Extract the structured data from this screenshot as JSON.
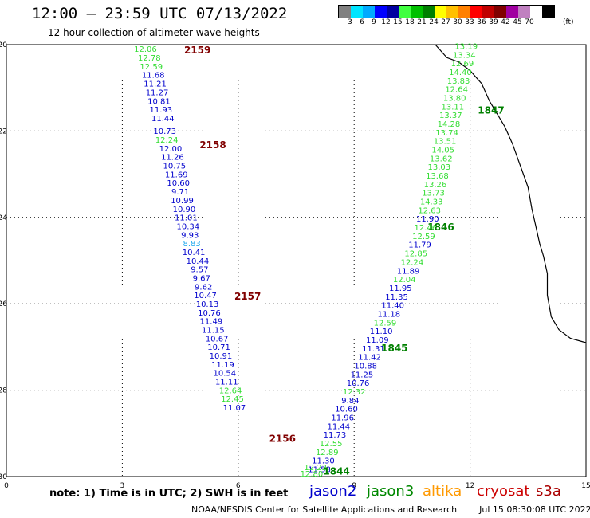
{
  "title": "12:00 – 23:59 UTC 07/13/2022",
  "subtitle": "12 hour collection of altimeter wave heights",
  "colorbar": {
    "colors": [
      "#808080",
      "#00e5ff",
      "#00aaff",
      "#0000ff",
      "#0000a0",
      "#40ff40",
      "#00c000",
      "#008000",
      "#ffff00",
      "#ffc000",
      "#ff8000",
      "#ff0000",
      "#c00000",
      "#800000",
      "#a000a0",
      "#c080c0",
      "#ffffff",
      "#000000"
    ],
    "ticks": [
      "3",
      "6",
      "9",
      "12",
      "15",
      "18",
      "21",
      "24",
      "27",
      "30",
      "33",
      "36",
      "39",
      "42",
      "45",
      "70"
    ],
    "unit": "(ft)"
  },
  "note": "note:  1) Time is in UTC;  2) SWH is in feet",
  "satellites": [
    {
      "name": "jason2",
      "color": "#0000cc"
    },
    {
      "name": "jason3",
      "color": "#008800"
    },
    {
      "name": "altika",
      "color": "#ff9900"
    },
    {
      "name": "cryosat",
      "color": "#cc0000"
    },
    {
      "name": "s3a",
      "color": "#aa0000"
    }
  ],
  "credit": "NOAA/NESDIS Center for Satellite Applications and Research",
  "timestamp": "Jul 15 08:30:08 UTC 2022",
  "chart_data": {
    "type": "scatter",
    "xlim": [
      0,
      15
    ],
    "ylim": [
      -30,
      -20
    ],
    "xticks": [
      "0",
      "3",
      "6",
      "9",
      "12",
      "15"
    ],
    "yticks": [
      "-20",
      "-22",
      "-24",
      "-26",
      "-28",
      "-30"
    ],
    "grid": true,
    "colors": {
      "blue": "#0000cc",
      "green": "#33dd33",
      "cyan": "#22aaee"
    },
    "passes": [
      {
        "name": "2159",
        "label_x": 4.6,
        "label_y": -20.2,
        "color": "#800000"
      },
      {
        "name": "2158",
        "label_x": 5.0,
        "label_y": -22.4,
        "color": "#800000"
      },
      {
        "name": "2157",
        "label_x": 5.9,
        "label_y": -25.9,
        "color": "#800000"
      },
      {
        "name": "2156",
        "label_x": 6.8,
        "label_y": -29.2,
        "color": "#800000"
      },
      {
        "name": "1847",
        "label_x": 12.2,
        "label_y": -21.6,
        "color": "#008000"
      },
      {
        "name": "1846",
        "label_x": 10.9,
        "label_y": -24.3,
        "color": "#008000"
      },
      {
        "name": "1845",
        "label_x": 9.7,
        "label_y": -27.1,
        "color": "#008000"
      },
      {
        "name": "1844",
        "label_x": 8.2,
        "label_y": -29.95,
        "color": "#008000"
      }
    ],
    "points": [
      {
        "x": 3.6,
        "y": -20.17,
        "v": "12.06",
        "c": "green"
      },
      {
        "x": 3.7,
        "y": -20.37,
        "v": "12.78",
        "c": "green"
      },
      {
        "x": 3.75,
        "y": -20.57,
        "v": "12.59",
        "c": "green"
      },
      {
        "x": 3.8,
        "y": -20.77,
        "v": "11.68",
        "c": "blue"
      },
      {
        "x": 3.85,
        "y": -20.97,
        "v": "11.21",
        "c": "blue"
      },
      {
        "x": 3.9,
        "y": -21.17,
        "v": "11.27",
        "c": "blue"
      },
      {
        "x": 3.95,
        "y": -21.37,
        "v": "10.81",
        "c": "blue"
      },
      {
        "x": 4.0,
        "y": -21.57,
        "v": "11.93",
        "c": "blue"
      },
      {
        "x": 4.05,
        "y": -21.77,
        "v": "11.44",
        "c": "blue"
      },
      {
        "x": 4.1,
        "y": -22.07,
        "v": "10.73",
        "c": "blue"
      },
      {
        "x": 4.15,
        "y": -22.27,
        "v": "12.24",
        "c": "green"
      },
      {
        "x": 4.25,
        "y": -22.47,
        "v": "12.00",
        "c": "blue"
      },
      {
        "x": 4.3,
        "y": -22.67,
        "v": "11.26",
        "c": "blue"
      },
      {
        "x": 4.35,
        "y": -22.87,
        "v": "10.75",
        "c": "blue"
      },
      {
        "x": 4.4,
        "y": -23.07,
        "v": "11.69",
        "c": "blue"
      },
      {
        "x": 4.45,
        "y": -23.27,
        "v": "10.60",
        "c": "blue"
      },
      {
        "x": 4.5,
        "y": -23.47,
        "v": "9.71",
        "c": "blue"
      },
      {
        "x": 4.55,
        "y": -23.67,
        "v": "10.99",
        "c": "blue"
      },
      {
        "x": 4.6,
        "y": -23.87,
        "v": "10.90",
        "c": "blue"
      },
      {
        "x": 4.65,
        "y": -24.07,
        "v": "11.01",
        "c": "blue"
      },
      {
        "x": 4.7,
        "y": -24.27,
        "v": "10.34",
        "c": "blue"
      },
      {
        "x": 4.75,
        "y": -24.47,
        "v": "9.93",
        "c": "blue"
      },
      {
        "x": 4.8,
        "y": -24.67,
        "v": "8.83",
        "c": "cyan"
      },
      {
        "x": 4.85,
        "y": -24.87,
        "v": "10.41",
        "c": "blue"
      },
      {
        "x": 4.95,
        "y": -25.07,
        "v": "10.44",
        "c": "blue"
      },
      {
        "x": 5.0,
        "y": -25.27,
        "v": "9.57",
        "c": "blue"
      },
      {
        "x": 5.05,
        "y": -25.47,
        "v": "9.67",
        "c": "blue"
      },
      {
        "x": 5.1,
        "y": -25.67,
        "v": "9.62",
        "c": "blue"
      },
      {
        "x": 5.15,
        "y": -25.87,
        "v": "10.47",
        "c": "blue"
      },
      {
        "x": 5.2,
        "y": -26.07,
        "v": "10.13",
        "c": "blue"
      },
      {
        "x": 5.25,
        "y": -26.27,
        "v": "10.76",
        "c": "blue"
      },
      {
        "x": 5.3,
        "y": -26.47,
        "v": "11.49",
        "c": "blue"
      },
      {
        "x": 5.35,
        "y": -26.67,
        "v": "11.15",
        "c": "blue"
      },
      {
        "x": 5.45,
        "y": -26.87,
        "v": "10.67",
        "c": "blue"
      },
      {
        "x": 5.5,
        "y": -27.07,
        "v": "10.71",
        "c": "blue"
      },
      {
        "x": 5.55,
        "y": -27.27,
        "v": "10.91",
        "c": "blue"
      },
      {
        "x": 5.6,
        "y": -27.47,
        "v": "11.19",
        "c": "blue"
      },
      {
        "x": 5.65,
        "y": -27.67,
        "v": "10.54",
        "c": "blue"
      },
      {
        "x": 5.7,
        "y": -27.87,
        "v": "11.11",
        "c": "blue"
      },
      {
        "x": 5.8,
        "y": -28.07,
        "v": "12.64",
        "c": "green"
      },
      {
        "x": 5.85,
        "y": -28.27,
        "v": "12.45",
        "c": "green"
      },
      {
        "x": 5.9,
        "y": -28.47,
        "v": "11.07",
        "c": "blue"
      },
      {
        "x": 11.9,
        "y": -20.1,
        "v": "13.19",
        "c": "green"
      },
      {
        "x": 11.85,
        "y": -20.3,
        "v": "13.34",
        "c": "green"
      },
      {
        "x": 11.8,
        "y": -20.5,
        "v": "12.69",
        "c": "green"
      },
      {
        "x": 11.75,
        "y": -20.7,
        "v": "14.40",
        "c": "green"
      },
      {
        "x": 11.7,
        "y": -20.9,
        "v": "13.83",
        "c": "green"
      },
      {
        "x": 11.65,
        "y": -21.1,
        "v": "12.64",
        "c": "green"
      },
      {
        "x": 11.6,
        "y": -21.3,
        "v": "13.80",
        "c": "green"
      },
      {
        "x": 11.55,
        "y": -21.5,
        "v": "13.11",
        "c": "green"
      },
      {
        "x": 11.5,
        "y": -21.7,
        "v": "13.37",
        "c": "green"
      },
      {
        "x": 11.45,
        "y": -21.9,
        "v": "14.28",
        "c": "green"
      },
      {
        "x": 11.4,
        "y": -22.1,
        "v": "13.74",
        "c": "green"
      },
      {
        "x": 11.35,
        "y": -22.3,
        "v": "13.51",
        "c": "green"
      },
      {
        "x": 11.3,
        "y": -22.5,
        "v": "14.05",
        "c": "green"
      },
      {
        "x": 11.25,
        "y": -22.7,
        "v": "13.62",
        "c": "green"
      },
      {
        "x": 11.2,
        "y": -22.9,
        "v": "13.03",
        "c": "green"
      },
      {
        "x": 11.15,
        "y": -23.1,
        "v": "13.68",
        "c": "green"
      },
      {
        "x": 11.1,
        "y": -23.3,
        "v": "13.26",
        "c": "green"
      },
      {
        "x": 11.05,
        "y": -23.5,
        "v": "13.73",
        "c": "green"
      },
      {
        "x": 11.0,
        "y": -23.7,
        "v": "14.33",
        "c": "green"
      },
      {
        "x": 10.95,
        "y": -23.9,
        "v": "12.63",
        "c": "green"
      },
      {
        "x": 10.9,
        "y": -24.1,
        "v": "11.90",
        "c": "blue"
      },
      {
        "x": 10.85,
        "y": -24.3,
        "v": "12.46",
        "c": "green"
      },
      {
        "x": 10.8,
        "y": -24.5,
        "v": "12.59",
        "c": "green"
      },
      {
        "x": 10.7,
        "y": -24.7,
        "v": "11.79",
        "c": "blue"
      },
      {
        "x": 10.6,
        "y": -24.9,
        "v": "12.85",
        "c": "green"
      },
      {
        "x": 10.5,
        "y": -25.1,
        "v": "12.24",
        "c": "green"
      },
      {
        "x": 10.4,
        "y": -25.3,
        "v": "11.89",
        "c": "blue"
      },
      {
        "x": 10.3,
        "y": -25.5,
        "v": "12.04",
        "c": "green"
      },
      {
        "x": 10.2,
        "y": -25.7,
        "v": "11.95",
        "c": "blue"
      },
      {
        "x": 10.1,
        "y": -25.9,
        "v": "11.35",
        "c": "blue"
      },
      {
        "x": 10.0,
        "y": -26.1,
        "v": "11.40",
        "c": "blue"
      },
      {
        "x": 9.9,
        "y": -26.3,
        "v": "11.18",
        "c": "blue"
      },
      {
        "x": 9.8,
        "y": -26.5,
        "v": "12.59",
        "c": "green"
      },
      {
        "x": 9.7,
        "y": -26.7,
        "v": "11.10",
        "c": "blue"
      },
      {
        "x": 9.6,
        "y": -26.9,
        "v": "11.09",
        "c": "blue"
      },
      {
        "x": 9.5,
        "y": -27.1,
        "v": "11.31",
        "c": "blue"
      },
      {
        "x": 9.4,
        "y": -27.3,
        "v": "11.42",
        "c": "blue"
      },
      {
        "x": 9.3,
        "y": -27.5,
        "v": "10.88",
        "c": "blue"
      },
      {
        "x": 9.2,
        "y": -27.7,
        "v": "11.25",
        "c": "blue"
      },
      {
        "x": 9.1,
        "y": -27.9,
        "v": "10.76",
        "c": "blue"
      },
      {
        "x": 9.0,
        "y": -28.1,
        "v": "12.32",
        "c": "green"
      },
      {
        "x": 8.9,
        "y": -28.3,
        "v": "9.84",
        "c": "blue"
      },
      {
        "x": 8.8,
        "y": -28.5,
        "v": "10.60",
        "c": "blue"
      },
      {
        "x": 8.7,
        "y": -28.7,
        "v": "11.96",
        "c": "blue"
      },
      {
        "x": 8.6,
        "y": -28.9,
        "v": "11.44",
        "c": "blue"
      },
      {
        "x": 8.5,
        "y": -29.1,
        "v": "11.73",
        "c": "blue"
      },
      {
        "x": 8.4,
        "y": -29.3,
        "v": "12.55",
        "c": "green"
      },
      {
        "x": 8.3,
        "y": -29.5,
        "v": "12.89",
        "c": "green"
      },
      {
        "x": 8.2,
        "y": -29.7,
        "v": "11.30",
        "c": "blue"
      },
      {
        "x": 8.1,
        "y": -29.9,
        "v": "11.58",
        "c": "blue"
      },
      {
        "x": 8.0,
        "y": -29.85,
        "v": "12.22",
        "c": "green"
      },
      {
        "x": 7.9,
        "y": -30.0,
        "v": "12.80",
        "c": "green"
      }
    ]
  }
}
